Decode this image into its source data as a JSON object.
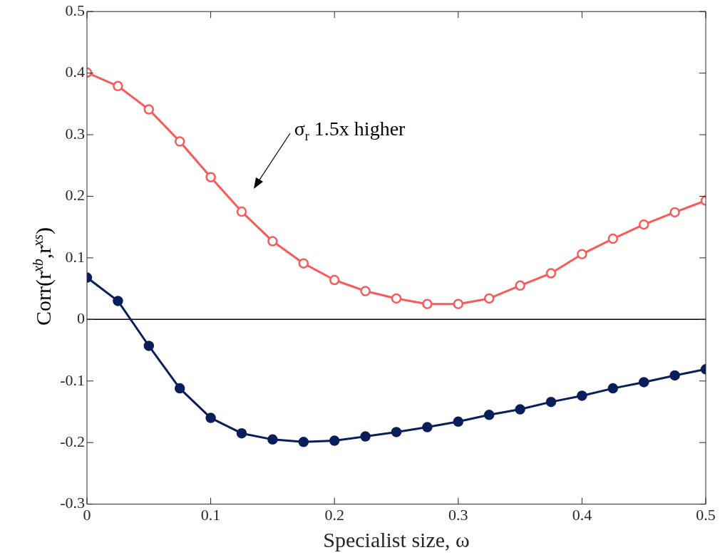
{
  "chart_data": {
    "type": "line",
    "xlabel": "Specialist size, ω",
    "ylabel": "Corr(r$^{xb}$,r$^{xs}$)",
    "x": [
      0,
      0.025,
      0.05,
      0.075,
      0.1,
      0.125,
      0.15,
      0.175,
      0.2,
      0.225,
      0.25,
      0.275,
      0.3,
      0.325,
      0.35,
      0.375,
      0.4,
      0.425,
      0.45,
      0.475,
      0.5
    ],
    "series": [
      {
        "color": "#fa5a5a",
        "values": [
          0.401,
          0.379,
          0.341,
          0.289,
          0.231,
          0.175,
          0.127,
          0.091,
          0.064,
          0.046,
          0.034,
          0.025,
          0.025,
          0.034,
          0.055,
          0.075,
          0.106,
          0.131,
          0.154,
          0.174,
          0.193
        ]
      },
      {
        "color": "#0a1e5a",
        "values": [
          0.068,
          0.03,
          -0.043,
          -0.112,
          -0.16,
          -0.185,
          -0.195,
          -0.199,
          -0.197,
          -0.19,
          -0.183,
          -0.175,
          -0.166,
          -0.155,
          -0.146,
          -0.134,
          -0.124,
          -0.112,
          -0.102,
          -0.091,
          -0.081
        ]
      }
    ],
    "xlim": [
      0,
      0.5
    ],
    "xticks": [
      0,
      0.1,
      0.2,
      0.3,
      0.4,
      0.5
    ],
    "ylim": [
      -0.3,
      0.5
    ],
    "yticks": [
      -0.3,
      -0.2,
      -0.1,
      0,
      0.1,
      0.2,
      0.3,
      0.4,
      0.5
    ],
    "ref_lines": [
      {
        "axis": "y",
        "value": 0,
        "color": "#000000"
      }
    ],
    "annotations": [
      "σ$_{r}$ 1.5x higher"
    ],
    "marker": "circle",
    "line_style": "solid",
    "grid": false,
    "legend": false
  }
}
